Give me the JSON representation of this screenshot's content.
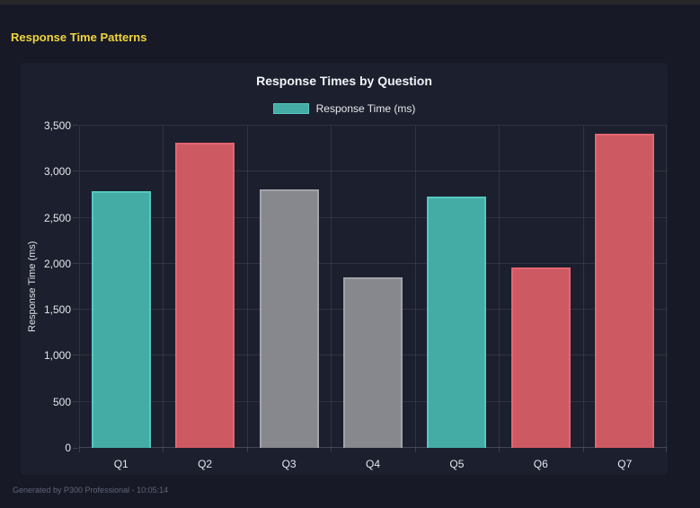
{
  "page": {
    "title": "Response Time Patterns",
    "title_color": "#f0d43c",
    "footer": "Generated by P300 Professional - 10:05:14"
  },
  "chart_data": {
    "type": "bar",
    "title": "Response Times by Question",
    "legend": [
      {
        "label": "Response Time (ms)",
        "color": "#45aba5"
      }
    ],
    "legend_position": "top",
    "categories": [
      "Q1",
      "Q2",
      "Q3",
      "Q4",
      "Q5",
      "Q6",
      "Q7"
    ],
    "values": [
      2790,
      3320,
      2810,
      1850,
      2730,
      1960,
      3410
    ],
    "bar_colors": [
      "teal",
      "red",
      "gray",
      "gray",
      "teal",
      "red",
      "red"
    ],
    "colors": {
      "teal": {
        "fill": "#45aba5",
        "border": "#54c8c0"
      },
      "red": {
        "fill": "#cd5a63",
        "border": "#e56570"
      },
      "gray": {
        "fill": "#87878e",
        "border": "#a3a3aa"
      }
    },
    "xlabel": "",
    "ylabel": "Response Time (ms)",
    "ylim": [
      0,
      3500
    ],
    "ytick_step": 500,
    "ytick_labels": [
      "0",
      "500",
      "1,000",
      "1,500",
      "2,000",
      "2,500",
      "3,000",
      "3,500"
    ],
    "grid": true
  }
}
